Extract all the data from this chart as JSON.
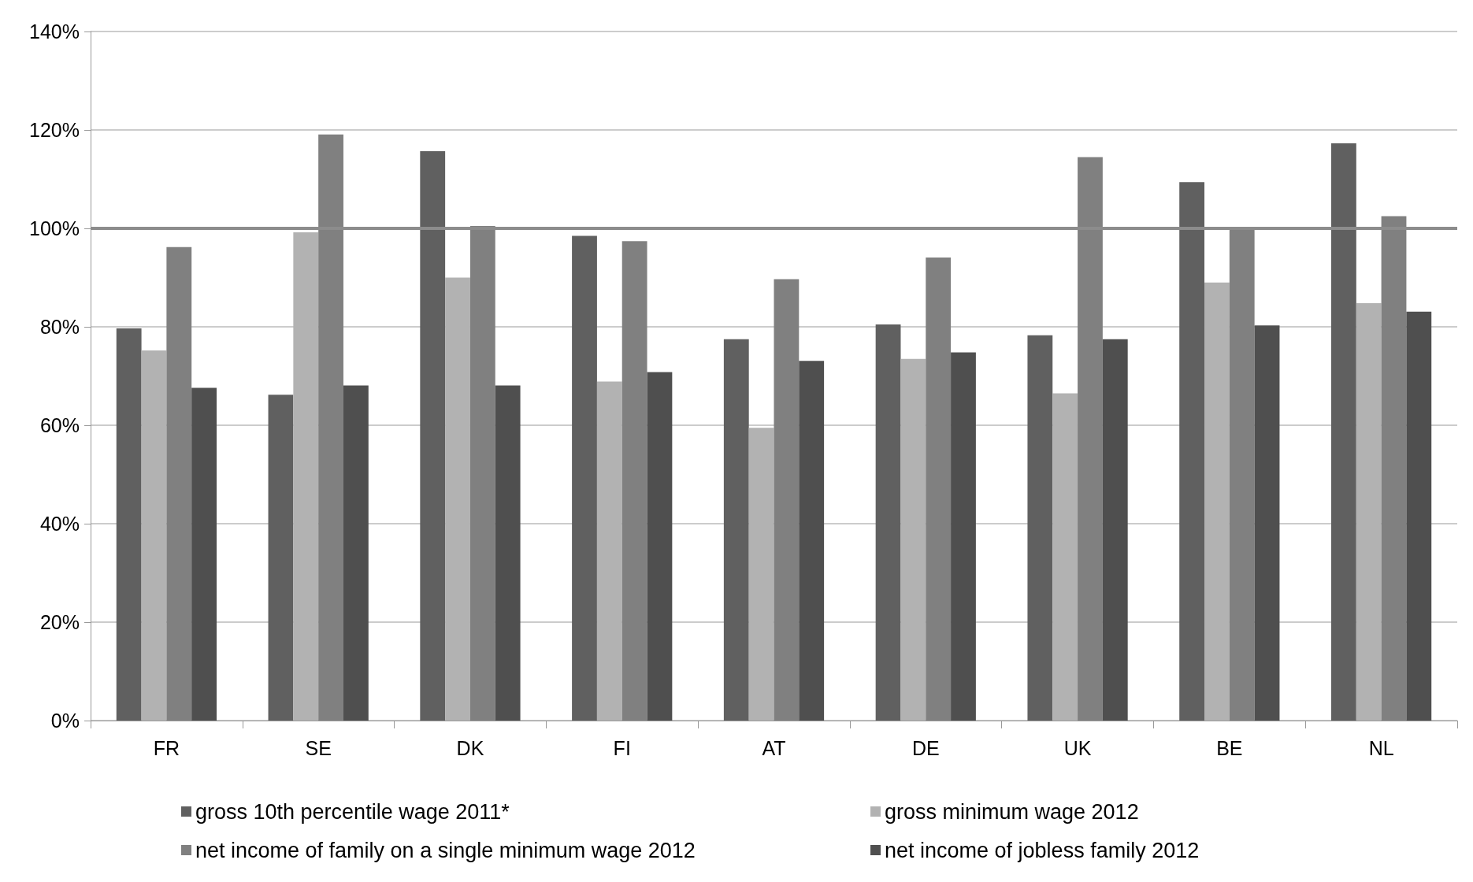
{
  "chart_data": {
    "type": "bar",
    "categories": [
      "FR",
      "SE",
      "DK",
      "FI",
      "AT",
      "DE",
      "UK",
      "BE",
      "NL"
    ],
    "series": [
      {
        "name": "gross 10th percentile wage 2011*",
        "color": "#606060",
        "values": [
          79.7,
          66.2,
          115.7,
          98.5,
          77.5,
          80.5,
          78.3,
          109.4,
          117.3
        ]
      },
      {
        "name": "gross minimum wage 2012",
        "color": "#b2b2b2",
        "values": [
          75.2,
          99.2,
          90.0,
          68.9,
          59.5,
          73.5,
          66.5,
          89.0,
          84.8
        ]
      },
      {
        "name": "net income of family on a single minimum wage 2012",
        "color": "#808080",
        "values": [
          96.2,
          119.1,
          100.5,
          97.4,
          89.7,
          94.1,
          114.5,
          100.0,
          102.5
        ]
      },
      {
        "name": "net income of jobless family 2012",
        "color": "#4f4f4f",
        "values": [
          67.6,
          68.1,
          68.1,
          70.8,
          73.1,
          74.8,
          77.5,
          80.3,
          83.1
        ]
      }
    ],
    "ylim": [
      0,
      140
    ],
    "yticks": [
      {
        "value": 0,
        "label": "0%"
      },
      {
        "value": 20,
        "label": "20%"
      },
      {
        "value": 40,
        "label": "40%"
      },
      {
        "value": 60,
        "label": "60%"
      },
      {
        "value": 80,
        "label": "80%"
      },
      {
        "value": 100,
        "label": "100%"
      },
      {
        "value": 120,
        "label": "120%"
      },
      {
        "value": 140,
        "label": "140%"
      }
    ],
    "ref_lines": [
      {
        "axis": "y",
        "value": 100,
        "color": "#8c8c8c"
      }
    ],
    "grid": "y",
    "legend": "bottom"
  }
}
